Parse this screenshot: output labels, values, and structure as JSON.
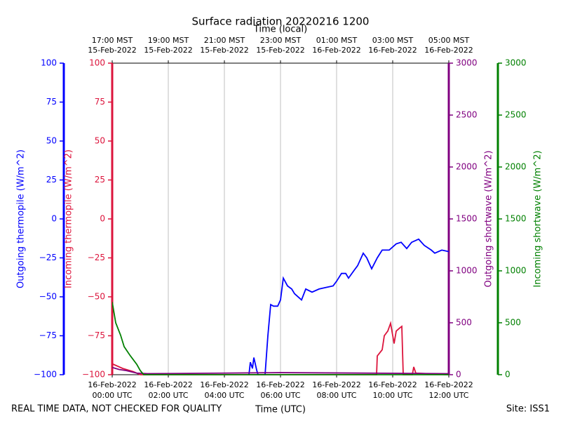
{
  "chart_data": {
    "type": "line",
    "title": "Surface radiation 20220216 1200",
    "xlabel": "Time (UTC)",
    "x2label": "Time (local)",
    "footer_left": "REAL TIME DATA, NOT CHECKED FOR QUALITY",
    "footer_right": "Site: ISS1",
    "xlim": [
      0,
      12
    ],
    "xticks": [
      {
        "value": 0,
        "label": [
          "16-Feb-2022",
          "00:00 UTC"
        ]
      },
      {
        "value": 2,
        "label": [
          "16-Feb-2022",
          "02:00 UTC"
        ]
      },
      {
        "value": 4,
        "label": [
          "16-Feb-2022",
          "04:00 UTC"
        ]
      },
      {
        "value": 6,
        "label": [
          "16-Feb-2022",
          "06:00 UTC"
        ]
      },
      {
        "value": 8,
        "label": [
          "16-Feb-2022",
          "08:00 UTC"
        ]
      },
      {
        "value": 10,
        "label": [
          "16-Feb-2022",
          "10:00 UTC"
        ]
      },
      {
        "value": 12,
        "label": [
          "16-Feb-2022",
          "12:00 UTC"
        ]
      }
    ],
    "x2lim": [
      0,
      12
    ],
    "x2ticks": [
      {
        "value": 0,
        "label": [
          "17:00 MST",
          "15-Feb-2022"
        ]
      },
      {
        "value": 2,
        "label": [
          "19:00 MST",
          "15-Feb-2022"
        ]
      },
      {
        "value": 4,
        "label": [
          "21:00 MST",
          "15-Feb-2022"
        ]
      },
      {
        "value": 6,
        "label": [
          "23:00 MST",
          "15-Feb-2022"
        ]
      },
      {
        "value": 8,
        "label": [
          "01:00 MST",
          "16-Feb-2022"
        ]
      },
      {
        "value": 10,
        "label": [
          "03:00 MST",
          "16-Feb-2022"
        ]
      },
      {
        "value": 12,
        "label": [
          "05:00 MST",
          "16-Feb-2022"
        ]
      }
    ],
    "grid": true,
    "y_axes": [
      {
        "label": "Outgoing thermopile (W/m^2)",
        "color": "#0000ff",
        "ylim": [
          -100,
          100
        ],
        "yticks": [
          {
            "value": -100,
            "label": "−100"
          },
          {
            "value": -75,
            "label": "−75"
          },
          {
            "value": -50,
            "label": "−50"
          },
          {
            "value": -25,
            "label": "−25"
          },
          0,
          25,
          50,
          75,
          100
        ]
      },
      {
        "label": "Incoming thermopile (W/m^2)",
        "color": "#dc143c",
        "ylim": [
          -100,
          100
        ],
        "yticks": [
          {
            "value": -100,
            "label": "−100"
          },
          {
            "value": -75,
            "label": "−75"
          },
          {
            "value": -50,
            "label": "−50"
          },
          {
            "value": -25,
            "label": "−25"
          },
          0,
          25,
          50,
          75,
          100
        ]
      },
      {
        "label": "Outgoing shortwave (W/m^2)",
        "color": "#800080",
        "ylim": [
          0,
          3000
        ],
        "yticks": [
          0,
          500,
          1000,
          1500,
          2000,
          2500,
          3000
        ]
      },
      {
        "label": "Incoming shortwave (W/m^2)",
        "color": "#008000",
        "ylim": [
          0,
          3000
        ],
        "yticks": [
          0,
          500,
          1000,
          1500,
          2000,
          2500,
          3000
        ]
      }
    ],
    "series": [
      {
        "color": "#0000ff",
        "axis": 0,
        "x": [
          4.875,
          4.925,
          5.0,
          5.05,
          5.15,
          5.2,
          5.45,
          5.55,
          5.65,
          5.75,
          5.9,
          6.0,
          6.1,
          6.25,
          6.4,
          6.5,
          6.75,
          6.9,
          7.125,
          7.375,
          7.625,
          7.875,
          8.0,
          8.175,
          8.325,
          8.425,
          8.625,
          8.75,
          8.95,
          9.075,
          9.25,
          9.45,
          9.625,
          9.875,
          10.125,
          10.3,
          10.5,
          10.675,
          10.925,
          11.125,
          11.375,
          11.5,
          11.75,
          12
        ],
        "values": [
          -100,
          -92,
          -96,
          -89,
          -97,
          -100,
          -100,
          -75,
          -55,
          -56,
          -56,
          -52,
          -38,
          -43,
          -45,
          -48,
          -52,
          -45,
          -47,
          -45,
          -44,
          -43,
          -40,
          -35,
          -35,
          -38,
          -33,
          -30,
          -22,
          -25,
          -32,
          -25,
          -20,
          -20,
          -16,
          -15,
          -19,
          -15,
          -13,
          -17,
          -20,
          -22,
          -20,
          -21
        ]
      },
      {
        "color": "#dc143c",
        "axis": 1,
        "x": [
          0,
          0.375,
          0.75,
          1.0,
          9.425,
          9.45,
          9.625,
          9.7,
          9.825,
          9.925,
          10.05,
          10.125,
          10.25,
          10.325,
          10.375,
          10.7,
          10.75,
          10.825,
          12
        ],
        "values": [
          -93,
          -96,
          -98,
          -100,
          -100,
          -88,
          -84,
          -75,
          -72,
          -67,
          -80,
          -72,
          -70,
          -69,
          -100,
          -100,
          -95,
          -99,
          -100
        ]
      },
      {
        "color": "#800080",
        "axis": 2,
        "x": [
          0,
          0.25,
          0.5,
          0.875,
          1.25,
          4,
          6,
          12
        ],
        "values": [
          70,
          50,
          40,
          15,
          10,
          15,
          20,
          10
        ]
      },
      {
        "color": "#008000",
        "axis": 3,
        "x": [
          0,
          0.125,
          0.3,
          0.425,
          0.625,
          0.875,
          1.0,
          1.125,
          12
        ],
        "values": [
          700,
          500,
          380,
          270,
          190,
          100,
          40,
          0,
          0
        ]
      }
    ]
  }
}
